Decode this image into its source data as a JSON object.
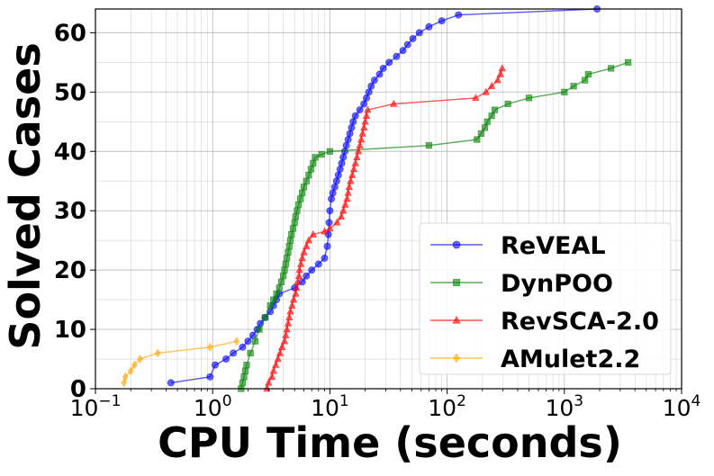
{
  "chart_data": {
    "type": "line",
    "xlabel": "CPU Time (seconds)",
    "ylabel": "Solved Cases",
    "x_scale": "log",
    "xlim": [
      0.1,
      10000
    ],
    "ylim": [
      0,
      64
    ],
    "grid": true,
    "legend_position": "lower-right",
    "xticks": [
      {
        "value": 0.1,
        "base": "10",
        "exp": "−1"
      },
      {
        "value": 1,
        "base": "10",
        "exp": "0"
      },
      {
        "value": 10,
        "base": "10",
        "exp": "1"
      },
      {
        "value": 100,
        "base": "10",
        "exp": "2"
      },
      {
        "value": 1000,
        "base": "10",
        "exp": "3"
      },
      {
        "value": 10000,
        "base": "10",
        "exp": "4"
      }
    ],
    "yticks": [
      0,
      10,
      20,
      30,
      40,
      50,
      60
    ],
    "series": [
      {
        "name": "ReVEAL",
        "color": "#0000ff",
        "marker": "circle",
        "points": [
          [
            0.44,
            1
          ],
          [
            0.95,
            2
          ],
          [
            1.05,
            4
          ],
          [
            1.3,
            5
          ],
          [
            1.5,
            6
          ],
          [
            1.8,
            7
          ],
          [
            2.0,
            8
          ],
          [
            2.2,
            9
          ],
          [
            2.4,
            10
          ],
          [
            2.55,
            11
          ],
          [
            2.8,
            12
          ],
          [
            3.1,
            13
          ],
          [
            3.3,
            14
          ],
          [
            3.5,
            15
          ],
          [
            3.7,
            16
          ],
          [
            5.0,
            17
          ],
          [
            5.8,
            18
          ],
          [
            6.3,
            19
          ],
          [
            7.0,
            20
          ],
          [
            8.0,
            21
          ],
          [
            9.0,
            22
          ],
          [
            9.5,
            24
          ],
          [
            9.7,
            26
          ],
          [
            9.85,
            28
          ],
          [
            10.0,
            30
          ],
          [
            10.3,
            32
          ],
          [
            10.6,
            33
          ],
          [
            11.0,
            34
          ],
          [
            11.4,
            35
          ],
          [
            11.8,
            36
          ],
          [
            12.2,
            37
          ],
          [
            12.6,
            38
          ],
          [
            13.0,
            39
          ],
          [
            13.4,
            40
          ],
          [
            13.8,
            41
          ],
          [
            14.3,
            42
          ],
          [
            14.8,
            43
          ],
          [
            15.3,
            44
          ],
          [
            15.8,
            45
          ],
          [
            16.5,
            46
          ],
          [
            18.0,
            47
          ],
          [
            19.5,
            48
          ],
          [
            20.5,
            49
          ],
          [
            21.5,
            50
          ],
          [
            22.5,
            51
          ],
          [
            24.0,
            52
          ],
          [
            26.5,
            53
          ],
          [
            28.5,
            54
          ],
          [
            32,
            55
          ],
          [
            37,
            56
          ],
          [
            42,
            57
          ],
          [
            46,
            58
          ],
          [
            51,
            59
          ],
          [
            58,
            60
          ],
          [
            70,
            61
          ],
          [
            90,
            62
          ],
          [
            125,
            63
          ],
          [
            1900,
            64
          ]
        ]
      },
      {
        "name": "DynPOO",
        "color": "#008000",
        "marker": "square",
        "points": [
          [
            1.75,
            0
          ],
          [
            1.8,
            1
          ],
          [
            1.85,
            2
          ],
          [
            1.9,
            3
          ],
          [
            1.95,
            4
          ],
          [
            2.1,
            6
          ],
          [
            2.3,
            8
          ],
          [
            2.5,
            10
          ],
          [
            2.8,
            12
          ],
          [
            3.1,
            14
          ],
          [
            3.3,
            15
          ],
          [
            3.5,
            16
          ],
          [
            3.7,
            17
          ],
          [
            3.85,
            18
          ],
          [
            4.0,
            19
          ],
          [
            4.1,
            20
          ],
          [
            4.2,
            21
          ],
          [
            4.3,
            22
          ],
          [
            4.4,
            23
          ],
          [
            4.5,
            24
          ],
          [
            4.6,
            25
          ],
          [
            4.7,
            26
          ],
          [
            4.85,
            27
          ],
          [
            5.0,
            28
          ],
          [
            5.1,
            29
          ],
          [
            5.25,
            30
          ],
          [
            5.4,
            31
          ],
          [
            5.6,
            32
          ],
          [
            5.8,
            33
          ],
          [
            6.0,
            34
          ],
          [
            6.3,
            35
          ],
          [
            6.6,
            36
          ],
          [
            6.9,
            37
          ],
          [
            7.2,
            38
          ],
          [
            7.5,
            39
          ],
          [
            8.5,
            39.5
          ],
          [
            10.0,
            40
          ],
          [
            70,
            41
          ],
          [
            180,
            42
          ],
          [
            195,
            43
          ],
          [
            210,
            44
          ],
          [
            220,
            45
          ],
          [
            240,
            46
          ],
          [
            255,
            47
          ],
          [
            330,
            48
          ],
          [
            500,
            49
          ],
          [
            1000,
            50
          ],
          [
            1200,
            51
          ],
          [
            1500,
            52
          ],
          [
            1600,
            53
          ],
          [
            2500,
            54
          ],
          [
            3500,
            55
          ]
        ]
      },
      {
        "name": "RevSCA-2.0",
        "color": "#ff0000",
        "marker": "triangle",
        "points": [
          [
            2.9,
            0
          ],
          [
            3.0,
            1
          ],
          [
            3.2,
            2
          ],
          [
            3.3,
            3
          ],
          [
            3.45,
            4
          ],
          [
            3.6,
            5
          ],
          [
            3.75,
            6
          ],
          [
            3.9,
            7
          ],
          [
            4.1,
            8
          ],
          [
            4.2,
            9
          ],
          [
            4.3,
            10
          ],
          [
            4.4,
            11
          ],
          [
            4.5,
            12
          ],
          [
            4.6,
            13
          ],
          [
            4.75,
            14
          ],
          [
            4.9,
            15
          ],
          [
            5.1,
            16
          ],
          [
            5.2,
            17
          ],
          [
            5.3,
            18
          ],
          [
            5.45,
            19
          ],
          [
            5.5,
            20
          ],
          [
            5.65,
            21
          ],
          [
            5.8,
            22
          ],
          [
            6.0,
            23
          ],
          [
            6.3,
            24
          ],
          [
            6.6,
            25
          ],
          [
            7.2,
            26
          ],
          [
            9.0,
            26.5
          ],
          [
            10,
            27
          ],
          [
            11.5,
            28
          ],
          [
            12.5,
            29
          ],
          [
            13.0,
            30
          ],
          [
            13.5,
            31
          ],
          [
            14.0,
            32
          ],
          [
            14.3,
            33
          ],
          [
            14.6,
            34
          ],
          [
            15.0,
            35
          ],
          [
            15.5,
            36
          ],
          [
            16.0,
            37
          ],
          [
            16.5,
            38
          ],
          [
            17.0,
            39
          ],
          [
            17.5,
            40
          ],
          [
            18.0,
            41
          ],
          [
            18.5,
            42
          ],
          [
            19.0,
            43
          ],
          [
            19.5,
            44
          ],
          [
            20.0,
            45
          ],
          [
            20.5,
            46
          ],
          [
            21,
            47
          ],
          [
            35,
            48
          ],
          [
            175,
            49
          ],
          [
            215,
            50
          ],
          [
            240,
            51
          ],
          [
            270,
            52
          ],
          [
            285,
            53
          ],
          [
            295,
            54
          ]
        ]
      },
      {
        "name": "AMulet2.2",
        "color": "#ffa500",
        "marker": "diamond",
        "points": [
          [
            0.175,
            1
          ],
          [
            0.18,
            2
          ],
          [
            0.2,
            3
          ],
          [
            0.215,
            4
          ],
          [
            0.24,
            5
          ],
          [
            0.34,
            6
          ],
          [
            0.95,
            7
          ],
          [
            1.6,
            8
          ]
        ]
      }
    ]
  }
}
